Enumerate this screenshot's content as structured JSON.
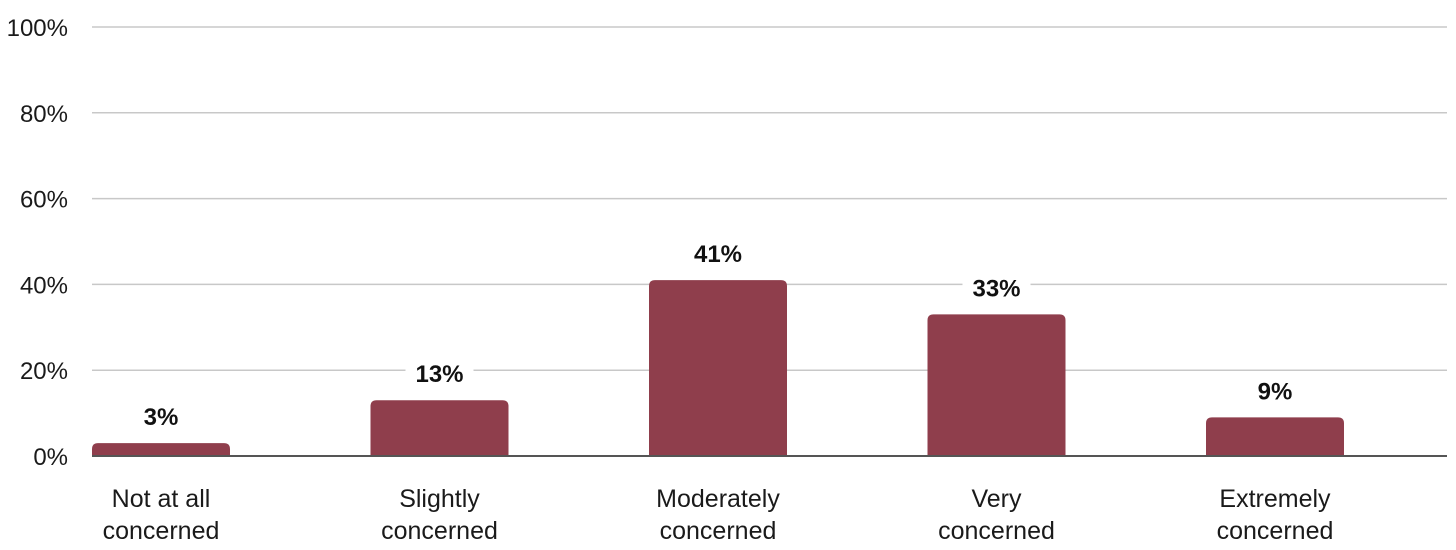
{
  "chart_data": {
    "type": "bar",
    "categories": [
      [
        "Not at all",
        "concerned"
      ],
      [
        "Slightly",
        "concerned"
      ],
      [
        "Moderately",
        "concerned"
      ],
      [
        "Very",
        "concerned"
      ],
      [
        "Extremely",
        "concerned"
      ]
    ],
    "values": [
      3,
      13,
      41,
      33,
      9
    ],
    "data_labels": [
      "3%",
      "13%",
      "41%",
      "33%",
      "9%"
    ],
    "yticks": [
      0,
      20,
      40,
      60,
      80,
      100
    ],
    "ytick_labels": [
      "0%",
      "20%",
      "40%",
      "60%",
      "80%",
      "100%"
    ],
    "ylim": [
      0,
      100
    ],
    "grid": true,
    "legend": "none",
    "colors": {
      "bar": "#8f3e4c",
      "grid": "#c8c8c8",
      "axis": "#555555"
    }
  }
}
